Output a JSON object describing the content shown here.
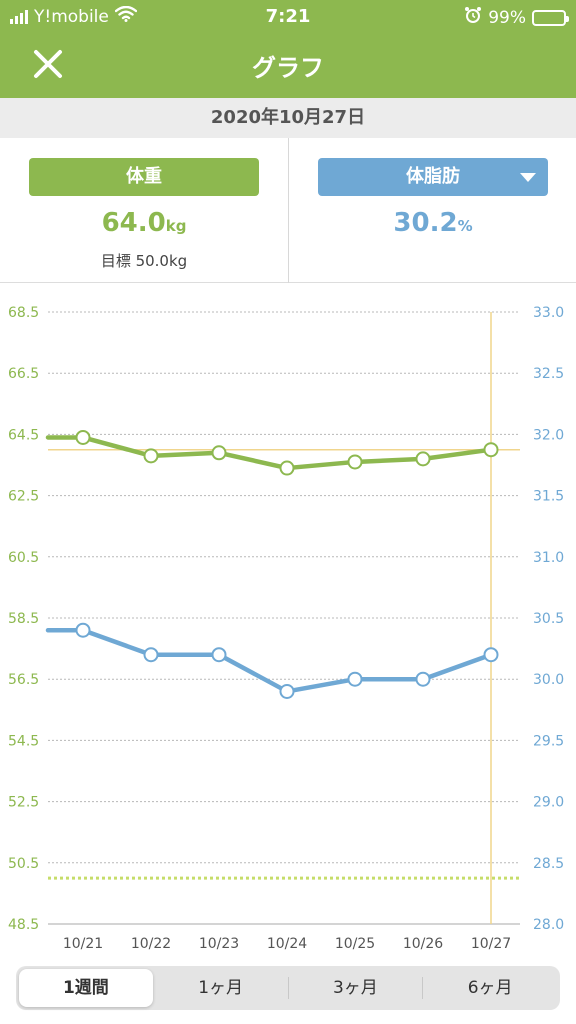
{
  "status": {
    "carrier": "Y!mobile",
    "time": "7:21",
    "battery": "99%",
    "battery_level": 0.99,
    "icons": [
      "signal-icon",
      "wifi-icon",
      "alarm-icon",
      "battery-icon"
    ]
  },
  "header": {
    "title": "グラフ",
    "close_icon": "close-icon"
  },
  "date": "2020年10月27日",
  "metrics": {
    "weight": {
      "label": "体重",
      "value": "64.0",
      "unit": "kg",
      "goal": "目標 50.0kg"
    },
    "body_fat": {
      "label": "体脂肪",
      "value": "30.2",
      "unit": "%"
    }
  },
  "colors": {
    "brand_green": "#8db84f",
    "fat_blue": "#6fa8d4",
    "goal_line": "#c6dd6a",
    "cursor_line": "#f0d58c"
  },
  "chart_data": {
    "type": "line",
    "categories": [
      "10/21",
      "10/22",
      "10/23",
      "10/24",
      "10/25",
      "10/26",
      "10/27"
    ],
    "y_left": {
      "ticks": [
        "68.5",
        "66.5",
        "64.5",
        "62.5",
        "60.5",
        "58.5",
        "56.5",
        "54.5",
        "52.5",
        "50.5",
        "48.5"
      ],
      "range": [
        48.5,
        68.5
      ]
    },
    "y_right": {
      "ticks": [
        "33.0",
        "32.5",
        "32.0",
        "31.5",
        "31.0",
        "30.5",
        "30.0",
        "29.5",
        "29.0",
        "28.5",
        "28.0"
      ],
      "range": [
        28.0,
        33.0
      ]
    },
    "series": [
      {
        "name": "体重",
        "axis": "left",
        "values": [
          64.4,
          63.8,
          63.9,
          63.4,
          63.6,
          63.7,
          64.0
        ],
        "extends_left": true
      },
      {
        "name": "体脂肪",
        "axis": "right",
        "values": [
          30.4,
          30.2,
          30.2,
          29.9,
          30.0,
          30.0,
          30.2
        ],
        "extends_left": true
      }
    ],
    "weight_goal": 50.0,
    "selected_category": "10/27",
    "grid": true
  },
  "periods": [
    {
      "label": "1週間",
      "active": true
    },
    {
      "label": "1ヶ月",
      "active": false
    },
    {
      "label": "3ヶ月",
      "active": false
    },
    {
      "label": "6ヶ月",
      "active": false
    }
  ]
}
